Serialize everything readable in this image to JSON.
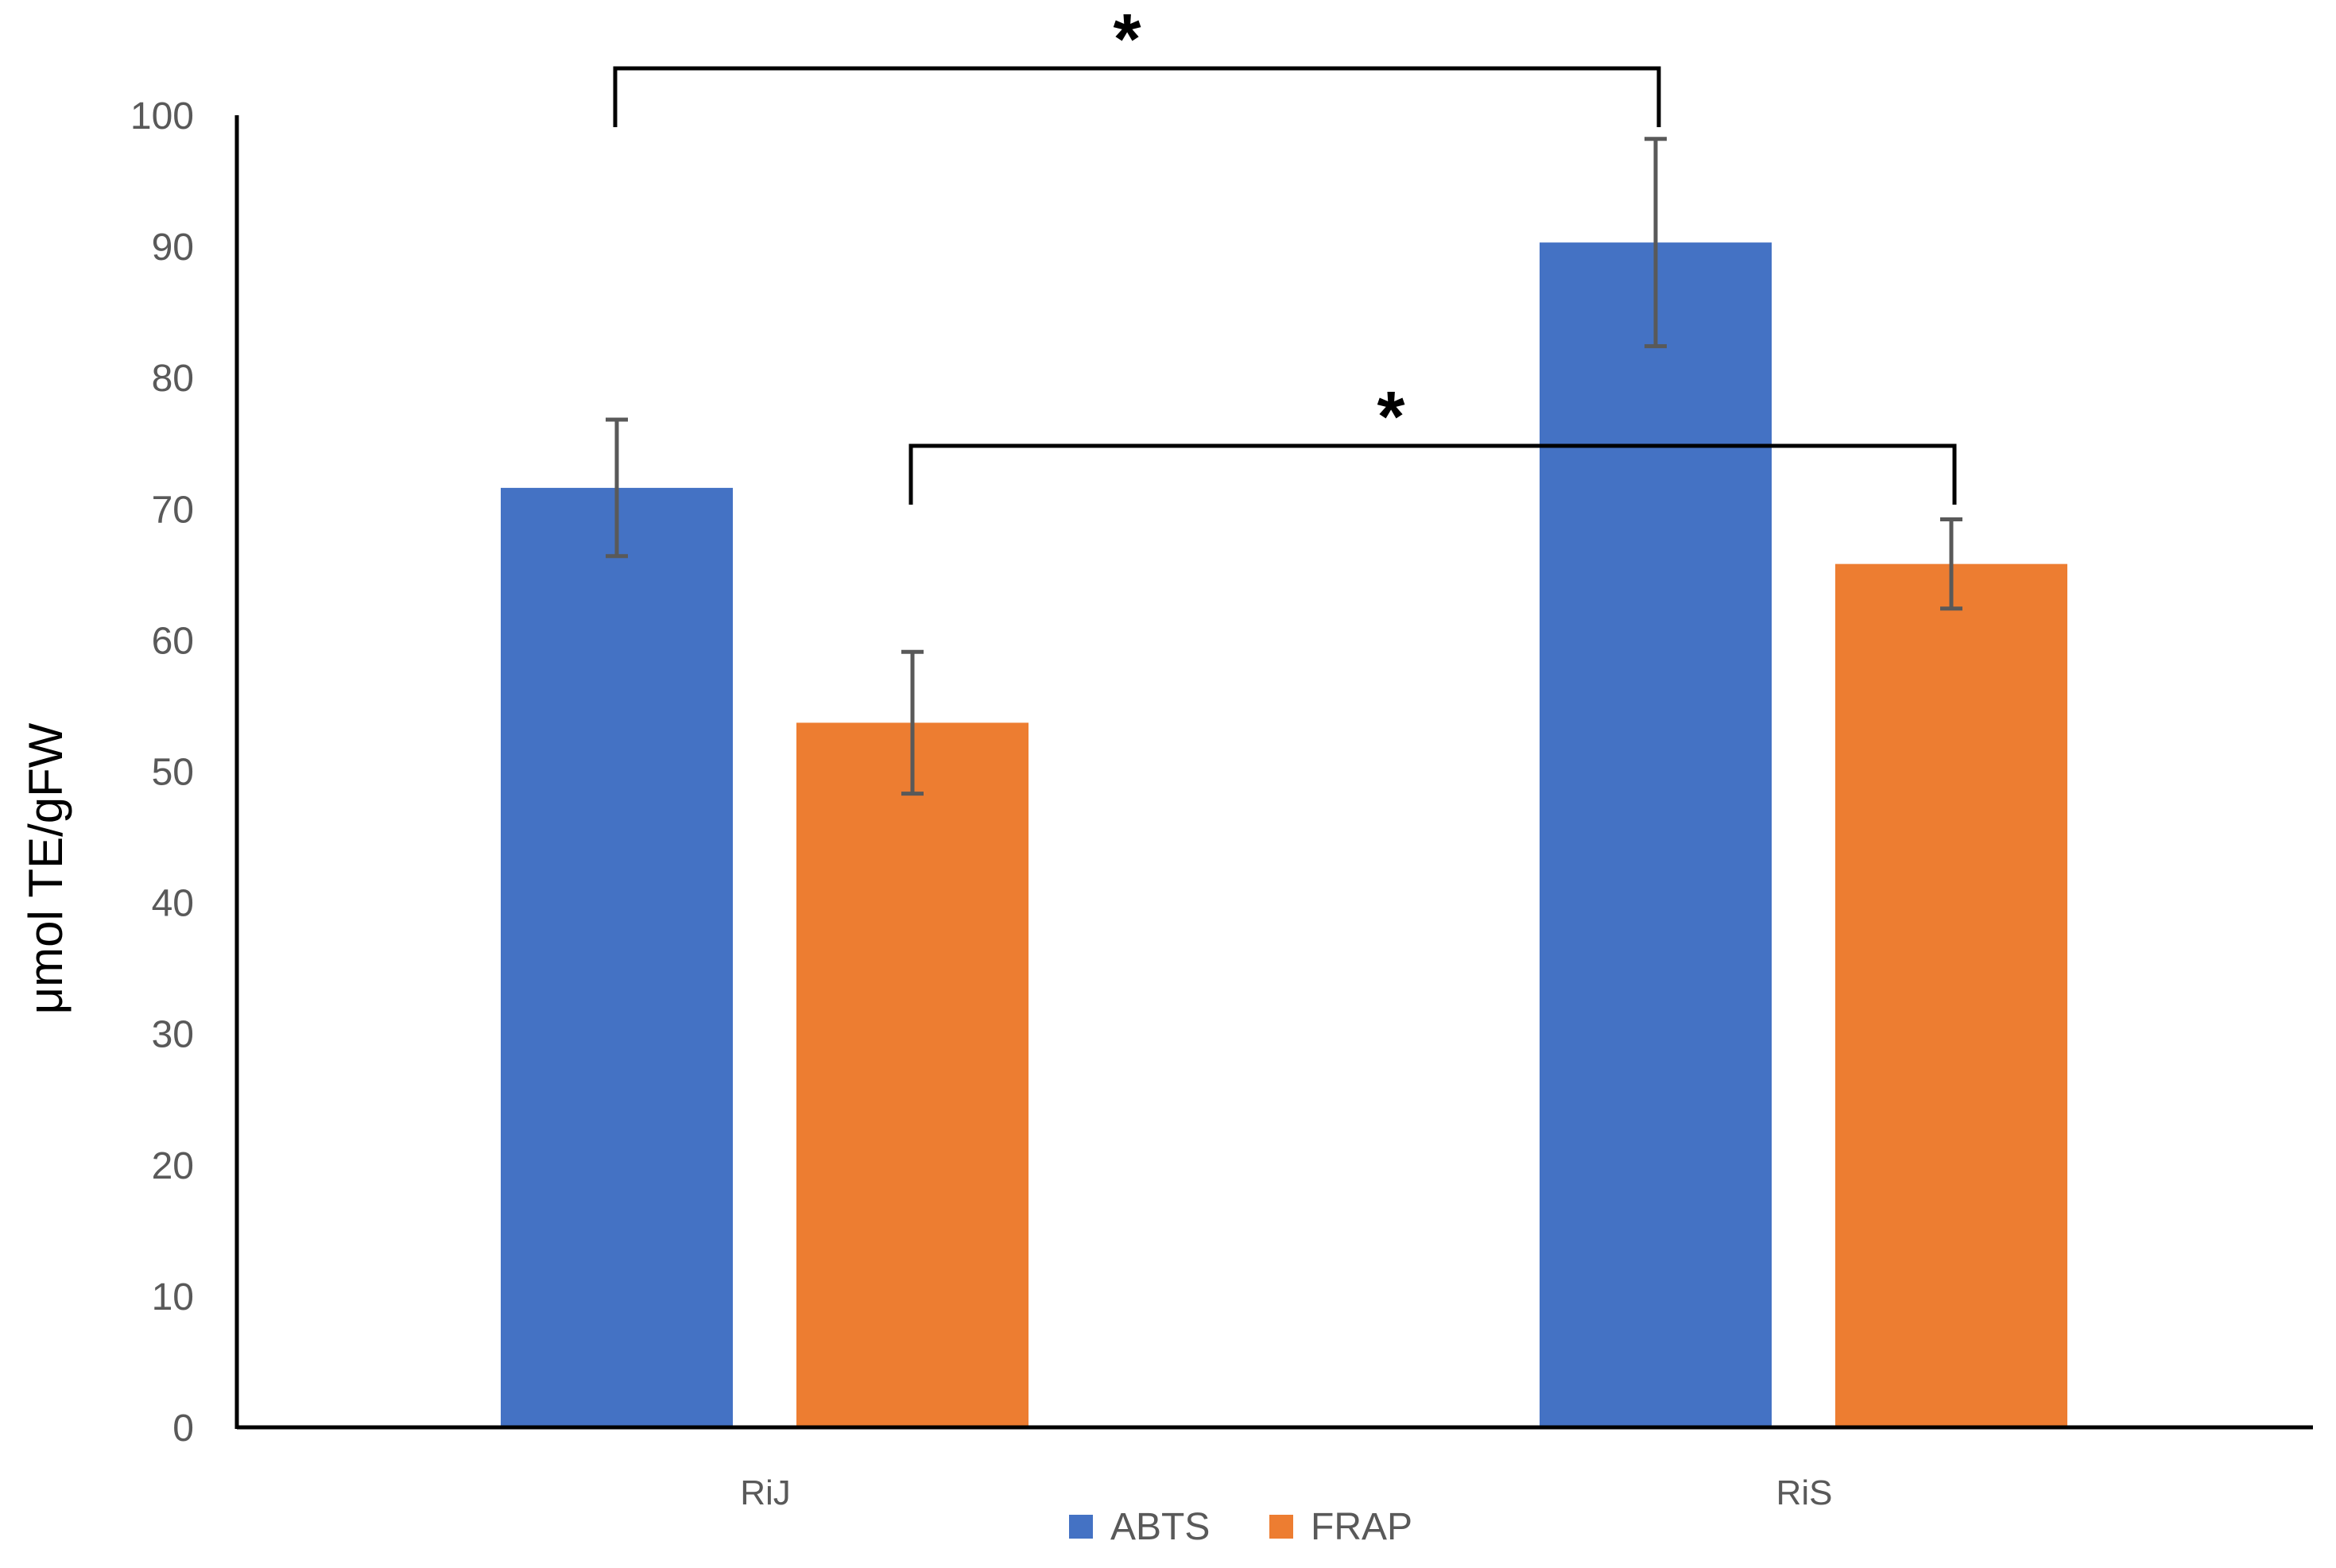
{
  "chart_data": {
    "type": "bar",
    "title": "",
    "xlabel": "",
    "ylabel": "μmol TE/gFW",
    "ylim": [
      0,
      100
    ],
    "yticks": [
      "0",
      "10",
      "20",
      "30",
      "40",
      "50",
      "60",
      "70",
      "80",
      "90",
      "100"
    ],
    "categories": [
      "RiJ",
      "RiS"
    ],
    "series": [
      {
        "name": "ABTS",
        "color": "#4472C4",
        "values": [
          71.6,
          90.3
        ],
        "error": [
          5.2,
          7.9
        ]
      },
      {
        "name": "FRAP",
        "color": "#ED7D31",
        "values": [
          53.7,
          65.8
        ],
        "error": [
          5.4,
          3.4
        ]
      }
    ],
    "grid": false,
    "legend_position": "bottom",
    "significance": [
      {
        "label": "*",
        "from": {
          "category": 0,
          "series": 0
        },
        "to": {
          "category": 1,
          "series": 0
        }
      },
      {
        "label": "*",
        "from": {
          "category": 0,
          "series": 1
        },
        "to": {
          "category": 1,
          "series": 1
        }
      }
    ]
  }
}
